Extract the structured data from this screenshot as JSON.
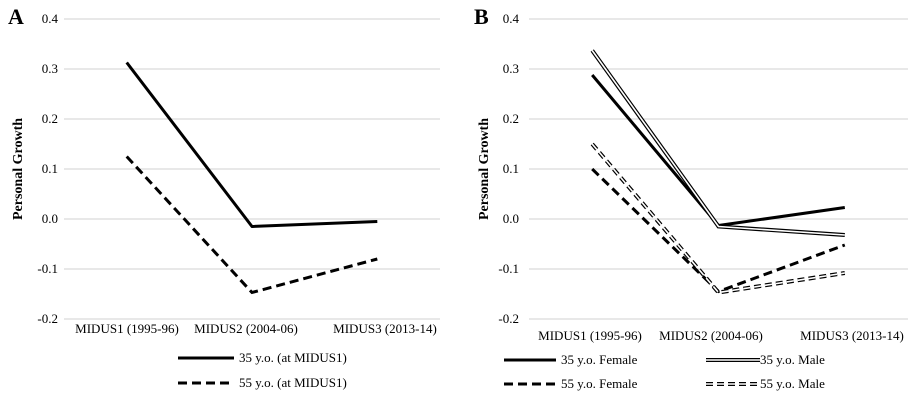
{
  "chart_data": [
    {
      "type": "line",
      "panel": "A",
      "ylabel": "Personal Growth",
      "xlabel": "",
      "ylim": [
        -0.2,
        0.4
      ],
      "yticks": [
        "-0.2",
        "-0.1",
        "0.0",
        "0.1",
        "0.2",
        "0.3",
        "0.4"
      ],
      "grid": "horizontal",
      "legend_position": "bottom",
      "categories": [
        "MIDUS1 (1995-96)",
        "MIDUS2 (2004-06)",
        "MIDUS3 (2013-14)"
      ],
      "series": [
        {
          "name": "35 y.o. (at MIDUS1)",
          "style": "solid",
          "values": [
            0.313,
            -0.015,
            -0.005
          ]
        },
        {
          "name": "55 y.o. (at MIDUS1)",
          "style": "dashed",
          "values": [
            0.125,
            -0.147,
            -0.08
          ]
        }
      ]
    },
    {
      "type": "line",
      "panel": "B",
      "ylabel": "Personal Growth",
      "xlabel": "",
      "ylim": [
        -0.2,
        0.4
      ],
      "yticks": [
        "-0.2",
        "-0.1",
        "0.0",
        "0.1",
        "0.2",
        "0.3",
        "0.4"
      ],
      "grid": "horizontal",
      "legend_position": "bottom",
      "categories": [
        "MIDUS1 (1995-96)",
        "MIDUS2 (2004-06)",
        "MIDUS3 (2013-14)"
      ],
      "series": [
        {
          "name": "35 y.o. Female",
          "style": "solid",
          "values": [
            0.288,
            -0.013,
            0.023
          ]
        },
        {
          "name": "35 y.o. Male",
          "style": "double",
          "values": [
            0.337,
            -0.015,
            -0.032
          ]
        },
        {
          "name": "55 y.o. Female",
          "style": "dashed",
          "values": [
            0.1,
            -0.145,
            -0.052
          ]
        },
        {
          "name": "55 y.o. Male",
          "style": "double-dashed",
          "values": [
            0.15,
            -0.147,
            -0.108
          ]
        }
      ]
    }
  ]
}
